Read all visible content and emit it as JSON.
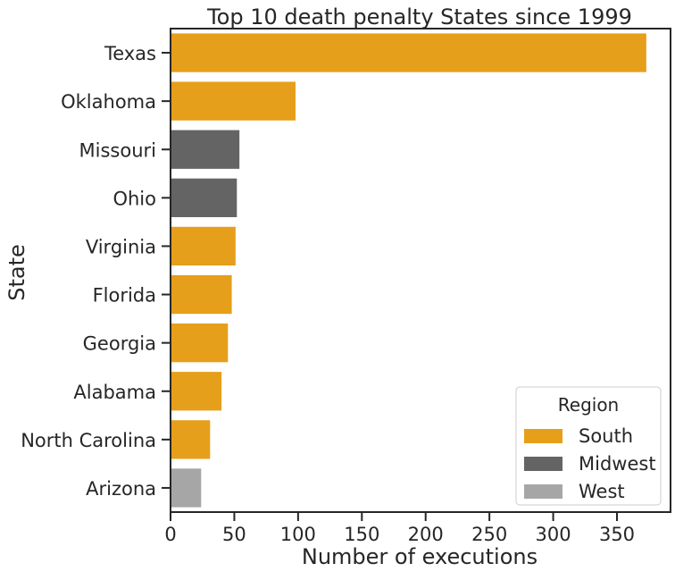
{
  "chart_data": {
    "type": "bar",
    "orientation": "horizontal",
    "title": "Top 10 death penalty States since 1999",
    "xlabel": "Number of executions",
    "ylabel": "State",
    "xlim": [
      0,
      392
    ],
    "xticks": [
      0,
      50,
      100,
      150,
      200,
      250,
      300,
      350
    ],
    "categories": [
      "Texas",
      "Oklahoma",
      "Missouri",
      "Ohio",
      "Virginia",
      "Florida",
      "Georgia",
      "Alabama",
      "North Carolina",
      "Arizona"
    ],
    "values": [
      373,
      98,
      54,
      52,
      51,
      48,
      45,
      40,
      31,
      24
    ],
    "regions": [
      "South",
      "South",
      "Midwest",
      "Midwest",
      "South",
      "South",
      "South",
      "South",
      "South",
      "West"
    ],
    "grid": false,
    "legend": {
      "title": "Region",
      "position": "bottom-right",
      "entries": [
        {
          "label": "South",
          "color": "#E69F1A"
        },
        {
          "label": "Midwest",
          "color": "#646464"
        },
        {
          "label": "West",
          "color": "#A6A6A6"
        }
      ]
    }
  }
}
